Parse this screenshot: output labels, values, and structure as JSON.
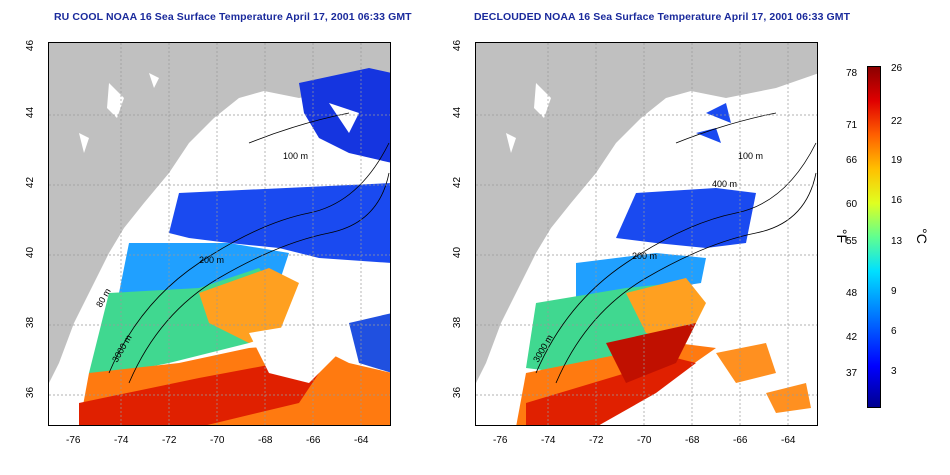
{
  "titles": {
    "left": "RU COOL NOAA 16 Sea Surface Temperature April 17, 2001 06:33 GMT",
    "right": "DECLOUDED NOAA 16 Sea Surface Temperature April 17, 2001 06:33 GMT"
  },
  "axes": {
    "x_ticks": [
      "-76",
      "-74",
      "-72",
      "-70",
      "-68",
      "-66",
      "-64"
    ],
    "y_ticks": [
      "36",
      "38",
      "40",
      "42",
      "44",
      "46"
    ]
  },
  "contour_labels": {
    "left": [
      "100 m",
      "200 m",
      "80 m",
      "3000 m"
    ],
    "right": [
      "100 m",
      "400 m",
      "200 m",
      "3000 m"
    ]
  },
  "colorbar": {
    "fahrenheit_unit": "°F",
    "celsius_unit": "°C",
    "fahrenheit_ticks": [
      "78",
      "71",
      "66",
      "60",
      "55",
      "48",
      "42",
      "37"
    ],
    "celsius_ticks": [
      "26",
      "22",
      "19",
      "16",
      "13",
      "9",
      "6",
      "3"
    ]
  },
  "colors": {
    "title": "#1a2a9c",
    "land": "#c0c0c0",
    "cloud": "#ffffff",
    "gulf_stream": "#d01000",
    "cold_water": "#1030e0"
  }
}
